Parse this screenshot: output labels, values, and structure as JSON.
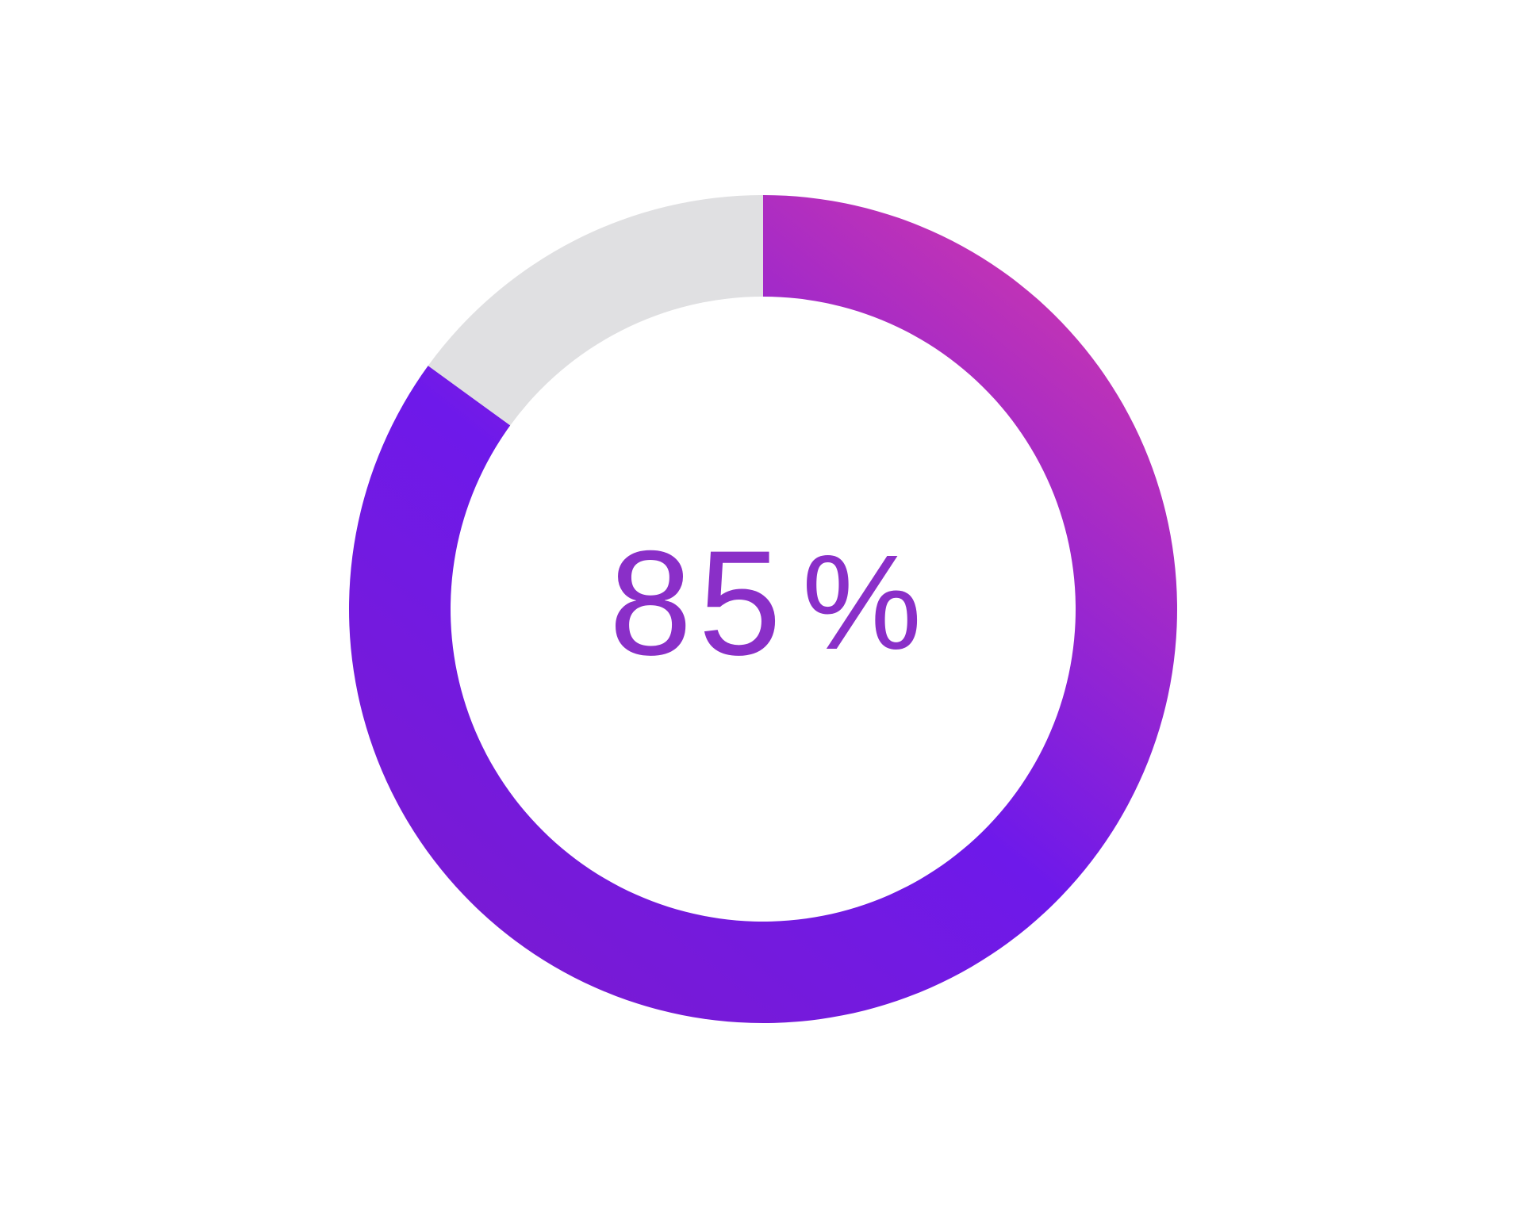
{
  "chart_data": {
    "type": "pie",
    "variant": "donut",
    "value": 85,
    "unit": "%",
    "slices": [
      {
        "label": "",
        "value": 85,
        "color": "gradient"
      },
      {
        "label": "",
        "value": 15,
        "color": "#e0e0e2"
      }
    ],
    "center_label": {
      "value": "85",
      "suffix": "%"
    },
    "colors": {
      "gradient_start": "#d63aa8",
      "gradient_mid": "#6e19ea",
      "gradient_end": "#7b1bcf",
      "remainder": "#e0e0e2",
      "text": "#8a2fc8"
    },
    "start_angle": "top",
    "direction": "clockwise"
  }
}
